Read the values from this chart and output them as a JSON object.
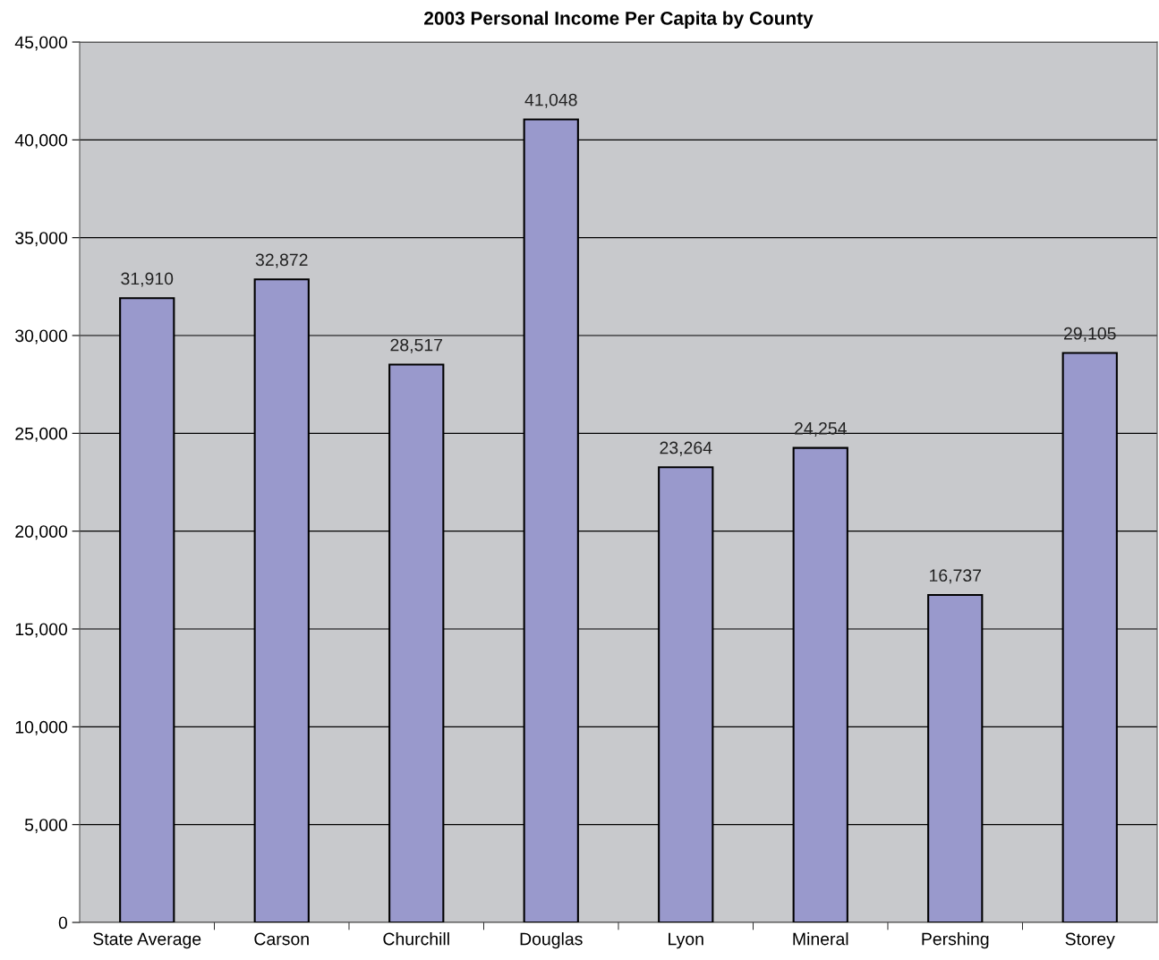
{
  "chart_data": {
    "type": "bar",
    "title": "2003 Personal Income Per Capita by County",
    "categories": [
      "State Average",
      "Carson",
      "Churchill",
      "Douglas",
      "Lyon",
      "Mineral",
      "Pershing",
      "Storey"
    ],
    "values": [
      31910,
      32872,
      28517,
      41048,
      23264,
      24254,
      16737,
      29105
    ],
    "value_labels": [
      "31,910",
      "32,872",
      "28,517",
      "41,048",
      "23,264",
      "24,254",
      "16,737",
      "29,105"
    ],
    "color": "#9999cc",
    "ylim": [
      0,
      45000
    ],
    "yticks": [
      {
        "value": 0,
        "label": "0"
      },
      {
        "value": 5000,
        "label": "5,000"
      },
      {
        "value": 10000,
        "label": "10,000"
      },
      {
        "value": 15000,
        "label": "15,000"
      },
      {
        "value": 20000,
        "label": "20,000"
      },
      {
        "value": 25000,
        "label": "25,000"
      },
      {
        "value": 30000,
        "label": "30,000"
      },
      {
        "value": 35000,
        "label": "35,000"
      },
      {
        "value": 40000,
        "label": "40,000"
      },
      {
        "value": 45000,
        "label": "45,000"
      }
    ],
    "grid": "y",
    "legend": false
  }
}
